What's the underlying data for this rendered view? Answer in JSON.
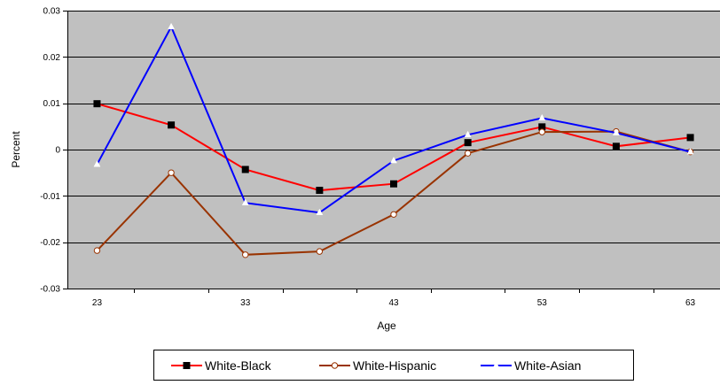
{
  "chart_data": {
    "type": "line",
    "title": "",
    "xlabel": "Age",
    "ylabel": "Percent",
    "x": [
      23,
      28,
      33,
      38,
      43,
      48,
      53,
      58,
      63
    ],
    "xlim": [
      21,
      65
    ],
    "ylim": [
      -0.03,
      0.03
    ],
    "x_ticks": [
      23,
      33,
      43,
      53,
      63
    ],
    "x_tick_labels": [
      "23",
      "33",
      "43",
      "53",
      "63"
    ],
    "y_ticks": [
      0.03,
      0.02,
      0.01,
      0,
      -0.01,
      -0.02,
      -0.03
    ],
    "y_tick_labels": [
      "0.03",
      "0.02",
      "0.01",
      "0",
      "-0.01",
      "-0.02",
      "-0.03"
    ],
    "grid": true,
    "plot_background": "#c0c0c0",
    "legend_position": "bottom",
    "series": [
      {
        "name": "White-Black",
        "color": "#ff0000",
        "marker": "square",
        "marker_color": "#000000",
        "values": [
          0.0099,
          0.0053,
          -0.0043,
          -0.0088,
          -0.0074,
          0.0015,
          0.0049,
          0.0007,
          0.0026
        ]
      },
      {
        "name": "White-Hispanic",
        "color": "#993300",
        "marker": "circle",
        "marker_color": "#ffffff",
        "values": [
          -0.0218,
          -0.005,
          -0.0227,
          -0.022,
          -0.014,
          -0.0008,
          0.0038,
          0.0039,
          -0.0005
        ]
      },
      {
        "name": "White-Asian",
        "color": "#0000ff",
        "marker": "triangle",
        "marker_color": "#ffffff",
        "values": [
          -0.0032,
          0.0265,
          -0.0115,
          -0.0136,
          -0.0024,
          0.0032,
          0.0068,
          0.0036,
          -0.0005
        ]
      }
    ]
  }
}
